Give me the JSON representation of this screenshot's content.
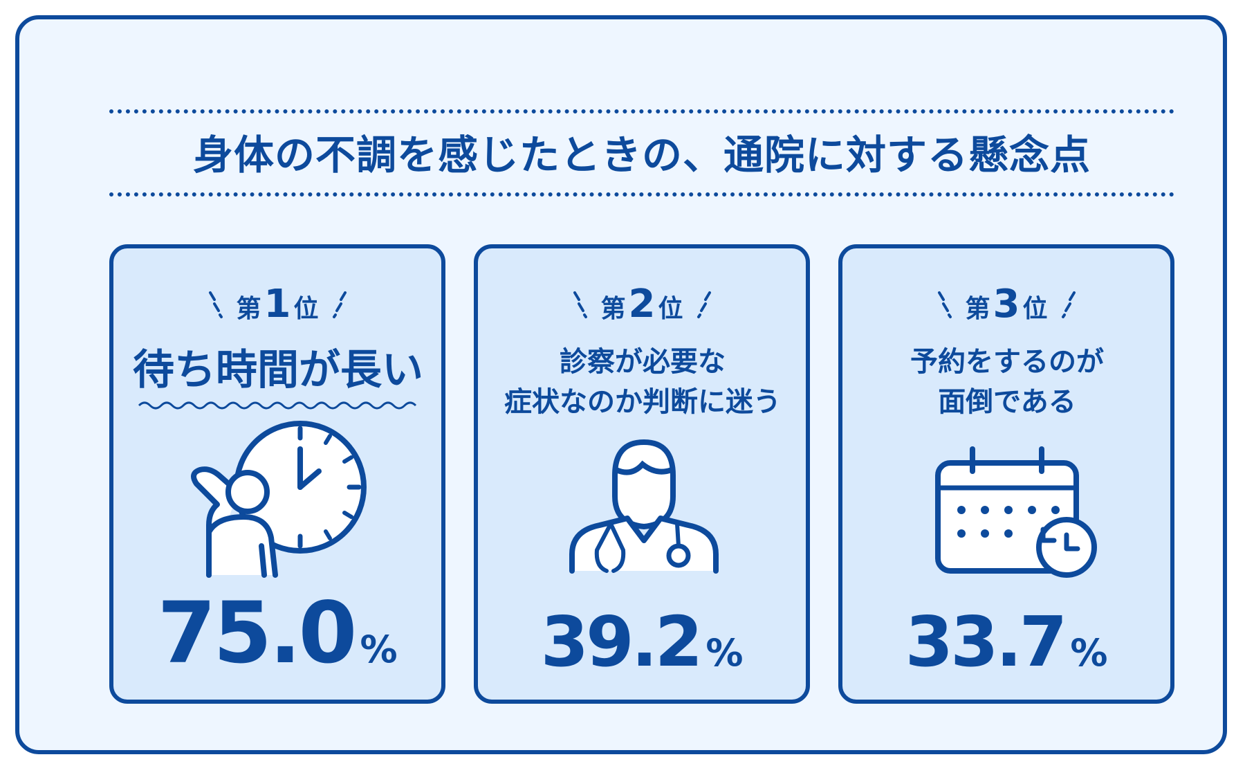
{
  "title": "身体の不調を感じたときの、通院に対する懸念点",
  "rank_prefix": "第",
  "rank_suffix": "位",
  "percent_sign": "%",
  "cards": [
    {
      "rank": "1",
      "label_lines": [
        "待ち時間が長い"
      ],
      "value": "75.0",
      "icon": "waiting-clock-icon"
    },
    {
      "rank": "2",
      "label_lines": [
        "診察が必要な",
        "症状なのか判断に迷う"
      ],
      "value": "39.2",
      "icon": "doctor-icon"
    },
    {
      "rank": "3",
      "label_lines": [
        "予約をするのが",
        "面倒である"
      ],
      "value": "33.7",
      "icon": "calendar-clock-icon"
    }
  ],
  "colors": {
    "primary": "#0d4a9c",
    "background": "#eef6ff",
    "card": "#d9eafc"
  }
}
